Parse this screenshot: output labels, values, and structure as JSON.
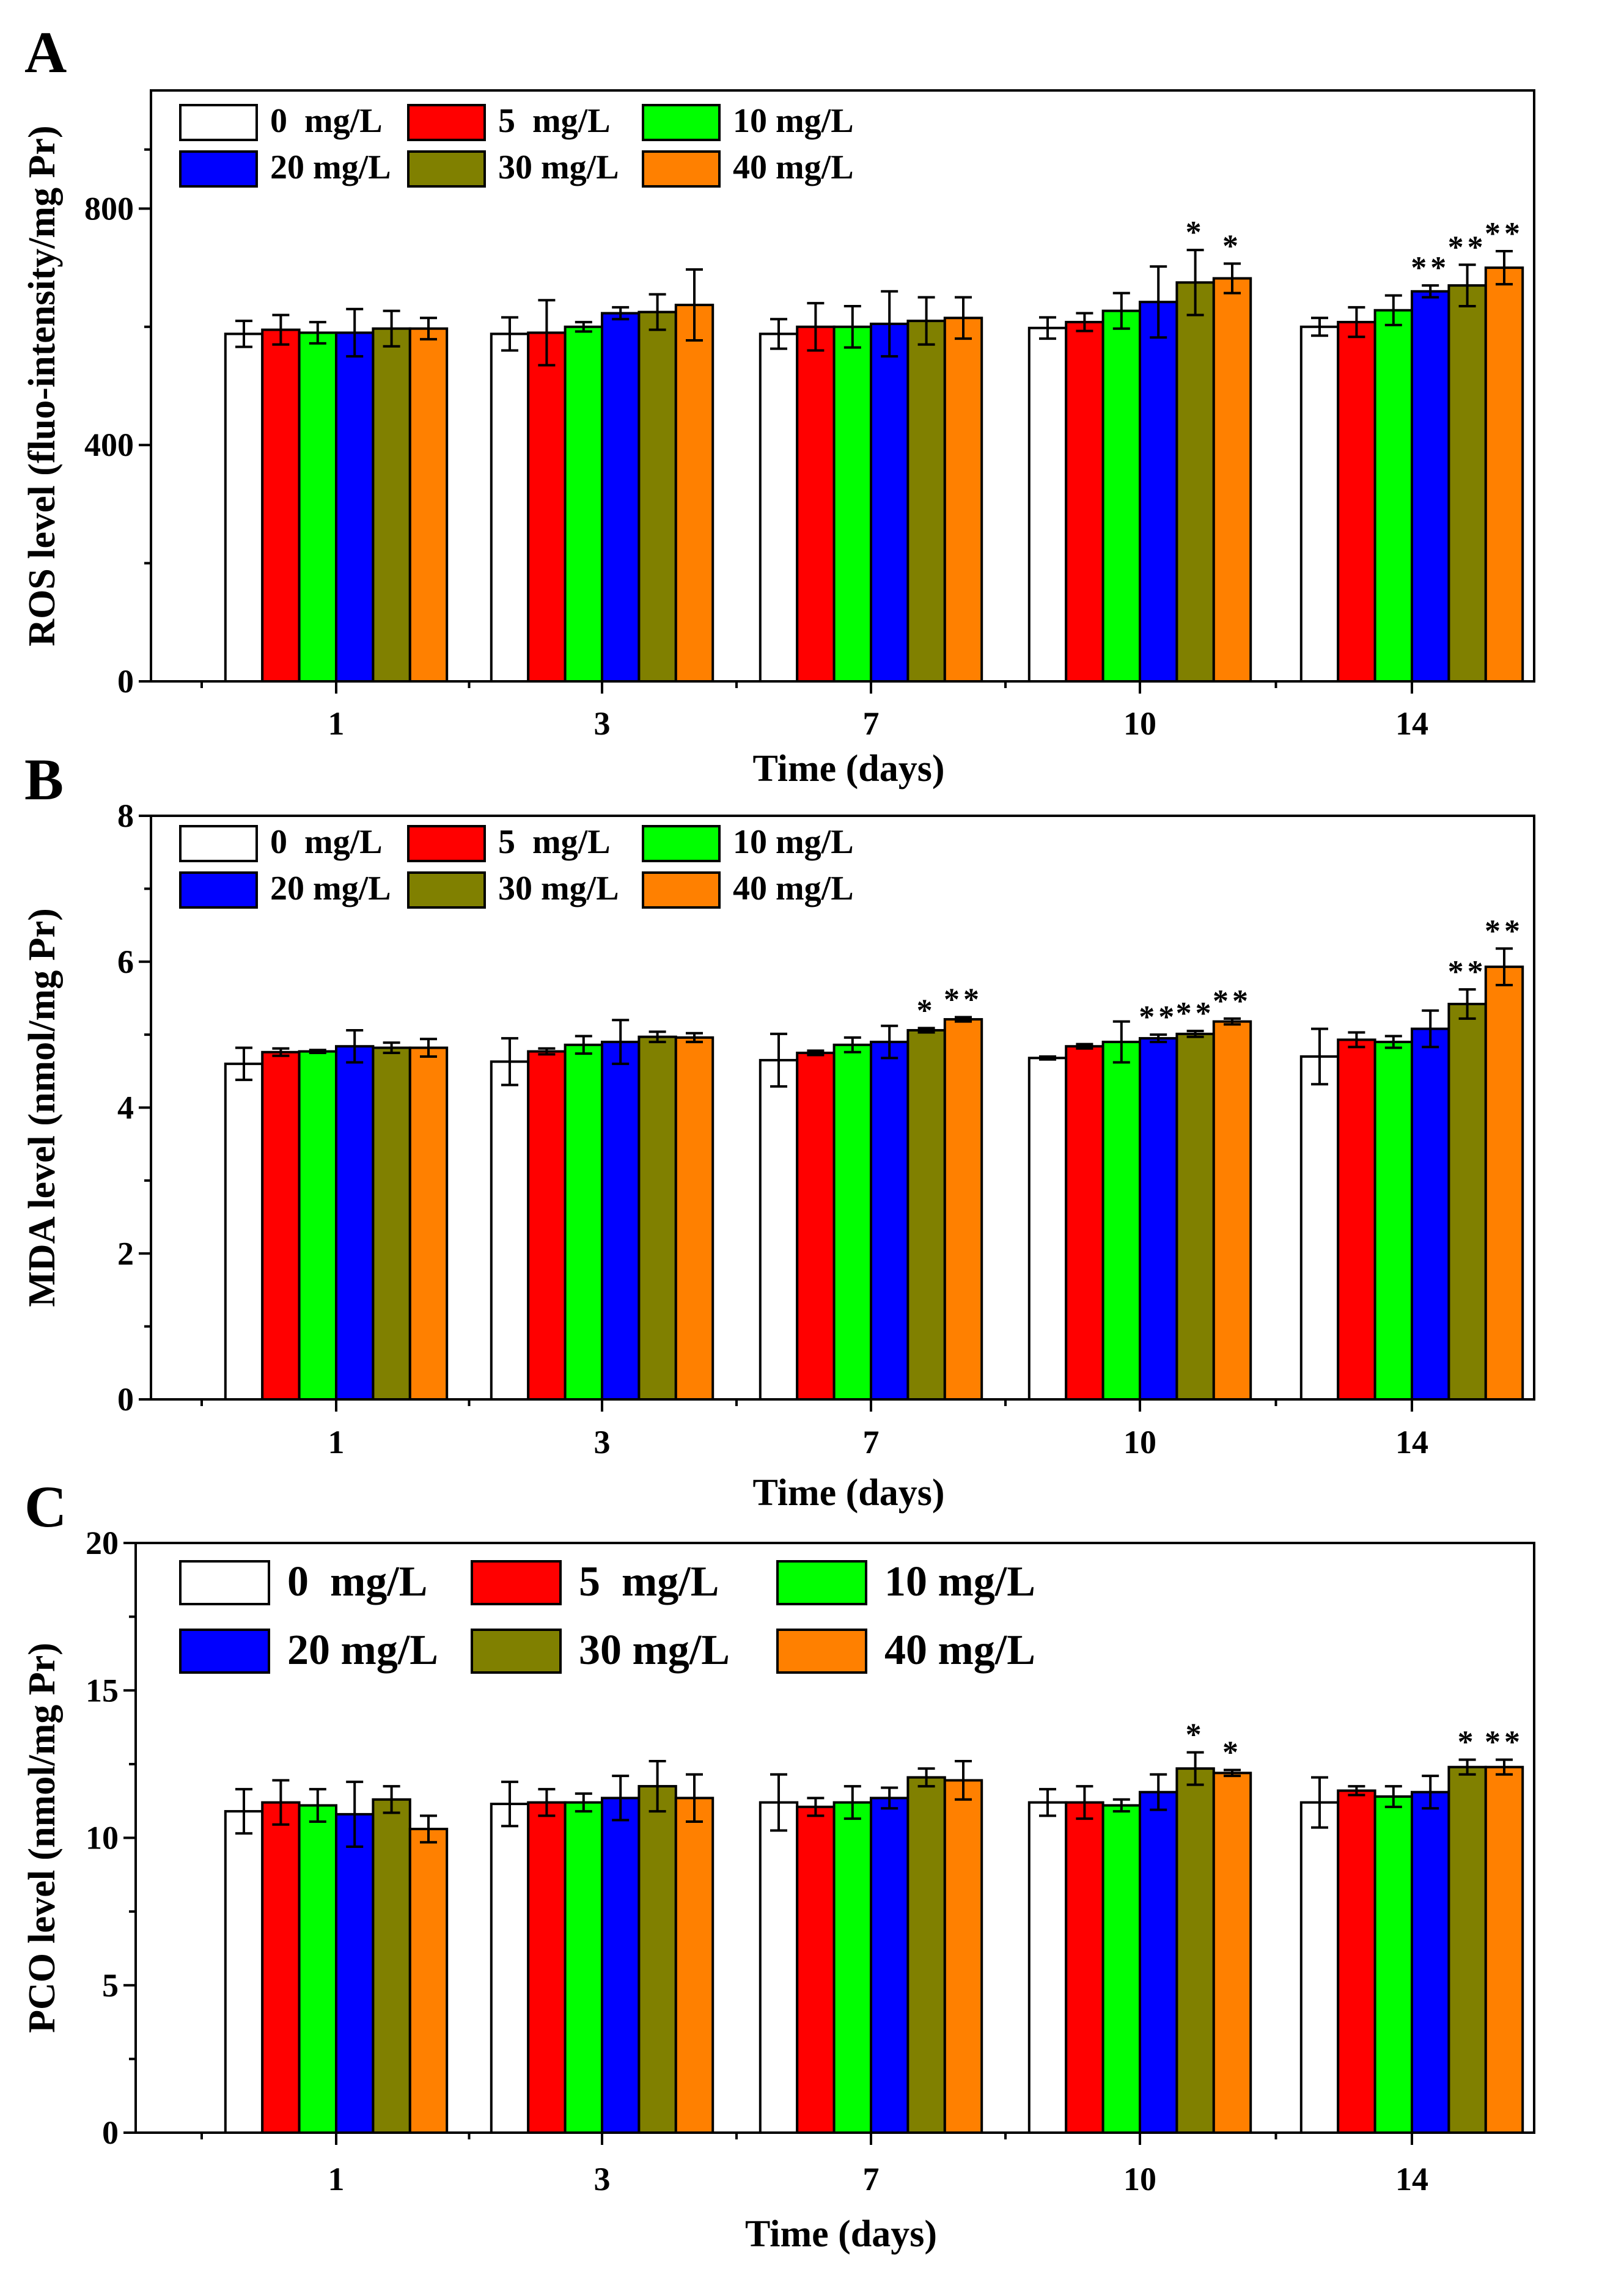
{
  "figure": {
    "colors": {
      "0 mg/L": "#ffffff",
      "5 mg/L": "#ff0000",
      "10 mg/L": "#00ff00",
      "20 mg/L": "#0000ff",
      "30 mg/L": "#808000",
      "40 mg/L": "#ff8000"
    }
  },
  "chart_data": [
    {
      "panel": "A",
      "type": "bar",
      "title": "",
      "xlabel": "Time (days)",
      "ylabel": "ROS level (fluo-intensity/mg Pr)",
      "ylim": [
        0,
        1000
      ],
      "yticks": [
        0,
        400,
        800
      ],
      "categories": [
        "1",
        "3",
        "7",
        "10",
        "14"
      ],
      "legend": "top-left",
      "series": [
        {
          "name": "0  mg/L",
          "values": [
            588,
            588,
            588,
            598,
            600
          ],
          "errors": [
            22,
            28,
            25,
            18,
            15
          ],
          "sig": [
            "",
            "",
            "",
            "",
            ""
          ]
        },
        {
          "name": "5  mg/L",
          "values": [
            595,
            590,
            600,
            608,
            608
          ],
          "errors": [
            25,
            55,
            40,
            15,
            25
          ],
          "sig": [
            "",
            "",
            "",
            "",
            ""
          ]
        },
        {
          "name": "10 mg/L",
          "values": [
            590,
            600,
            600,
            627,
            628
          ],
          "errors": [
            18,
            8,
            35,
            30,
            25
          ],
          "sig": [
            "",
            "",
            "",
            "",
            ""
          ]
        },
        {
          "name": "20 mg/L",
          "values": [
            590,
            623,
            605,
            642,
            660
          ],
          "errors": [
            40,
            10,
            55,
            60,
            10
          ],
          "sig": [
            "",
            "",
            "",
            "",
            "**"
          ]
        },
        {
          "name": "30 mg/L",
          "values": [
            597,
            625,
            610,
            675,
            670
          ],
          "errors": [
            30,
            30,
            40,
            55,
            35
          ],
          "sig": [
            "",
            "",
            "",
            "*",
            "**"
          ]
        },
        {
          "name": "40 mg/L",
          "values": [
            597,
            637,
            615,
            682,
            700
          ],
          "errors": [
            18,
            60,
            35,
            25,
            28
          ],
          "sig": [
            "",
            "",
            "",
            "*",
            "**"
          ]
        }
      ]
    },
    {
      "panel": "B",
      "type": "bar",
      "title": "",
      "xlabel": "Time (days)",
      "ylabel": "MDA level (nmol/mg Pr)",
      "ylim": [
        0,
        8
      ],
      "yticks": [
        0,
        2,
        4,
        6,
        8
      ],
      "categories": [
        "1",
        "3",
        "7",
        "10",
        "14"
      ],
      "legend": "top-left",
      "series": [
        {
          "name": "0  mg/L",
          "values": [
            4.6,
            4.63,
            4.65,
            4.68,
            4.7
          ],
          "errors": [
            0.22,
            0.32,
            0.36,
            0.02,
            0.38
          ],
          "sig": [
            "",
            "",
            "",
            "",
            ""
          ]
        },
        {
          "name": "5  mg/L",
          "values": [
            4.76,
            4.77,
            4.75,
            4.84,
            4.93
          ],
          "errors": [
            0.05,
            0.04,
            0.03,
            0.03,
            0.1
          ],
          "sig": [
            "",
            "",
            "",
            "",
            ""
          ]
        },
        {
          "name": "10 mg/L",
          "values": [
            4.77,
            4.86,
            4.86,
            4.9,
            4.9
          ],
          "errors": [
            0.02,
            0.12,
            0.1,
            0.28,
            0.08
          ],
          "sig": [
            "",
            "",
            "",
            "",
            ""
          ]
        },
        {
          "name": "20 mg/L",
          "values": [
            4.84,
            4.9,
            4.9,
            4.95,
            5.08
          ],
          "errors": [
            0.22,
            0.3,
            0.22,
            0.05,
            0.25
          ],
          "sig": [
            "",
            "",
            "",
            "**",
            ""
          ]
        },
        {
          "name": "30 mg/L",
          "values": [
            4.82,
            4.97,
            5.06,
            5.01,
            5.42
          ],
          "errors": [
            0.07,
            0.07,
            0.03,
            0.04,
            0.2
          ],
          "sig": [
            "",
            "",
            "*",
            "**",
            "**"
          ]
        },
        {
          "name": "40 mg/L",
          "values": [
            4.82,
            4.96,
            5.21,
            5.18,
            5.93
          ],
          "errors": [
            0.12,
            0.06,
            0.03,
            0.04,
            0.25
          ],
          "sig": [
            "",
            "",
            "**",
            "**",
            "**"
          ]
        }
      ]
    },
    {
      "panel": "C",
      "type": "bar",
      "title": "",
      "xlabel": "Time (days)",
      "ylabel": "PCO level  (nmol/mg Pr)",
      "ylim": [
        0,
        20
      ],
      "yticks": [
        0,
        5,
        10,
        15,
        20
      ],
      "categories": [
        "1",
        "3",
        "7",
        "10",
        "14"
      ],
      "legend": "top-left",
      "series": [
        {
          "name": "0  mg/L",
          "values": [
            10.9,
            11.15,
            11.2,
            11.2,
            11.2
          ],
          "errors": [
            0.75,
            0.75,
            0.95,
            0.45,
            0.85
          ],
          "sig": [
            "",
            "",
            "",
            "",
            ""
          ]
        },
        {
          "name": "5  mg/L",
          "values": [
            11.2,
            11.2,
            11.05,
            11.2,
            11.6
          ],
          "errors": [
            0.75,
            0.45,
            0.3,
            0.55,
            0.15
          ],
          "sig": [
            "",
            "",
            "",
            "",
            ""
          ]
        },
        {
          "name": "10 mg/L",
          "values": [
            11.1,
            11.2,
            11.2,
            11.1,
            11.4
          ],
          "errors": [
            0.55,
            0.3,
            0.55,
            0.2,
            0.35
          ],
          "sig": [
            "",
            "",
            "",
            "",
            ""
          ]
        },
        {
          "name": "20 mg/L",
          "values": [
            10.8,
            11.35,
            11.35,
            11.55,
            11.55
          ],
          "errors": [
            1.1,
            0.75,
            0.35,
            0.6,
            0.55
          ],
          "sig": [
            "",
            "",
            "",
            "",
            ""
          ]
        },
        {
          "name": "30 mg/L",
          "values": [
            11.3,
            11.75,
            12.05,
            12.35,
            12.4
          ],
          "errors": [
            0.45,
            0.85,
            0.3,
            0.55,
            0.25
          ],
          "sig": [
            "",
            "",
            "",
            "*",
            "*"
          ]
        },
        {
          "name": "40 mg/L",
          "values": [
            10.3,
            11.35,
            11.95,
            12.2,
            12.4
          ],
          "errors": [
            0.45,
            0.8,
            0.65,
            0.1,
            0.25
          ],
          "sig": [
            "",
            "",
            "",
            "*",
            "**"
          ]
        }
      ]
    }
  ]
}
